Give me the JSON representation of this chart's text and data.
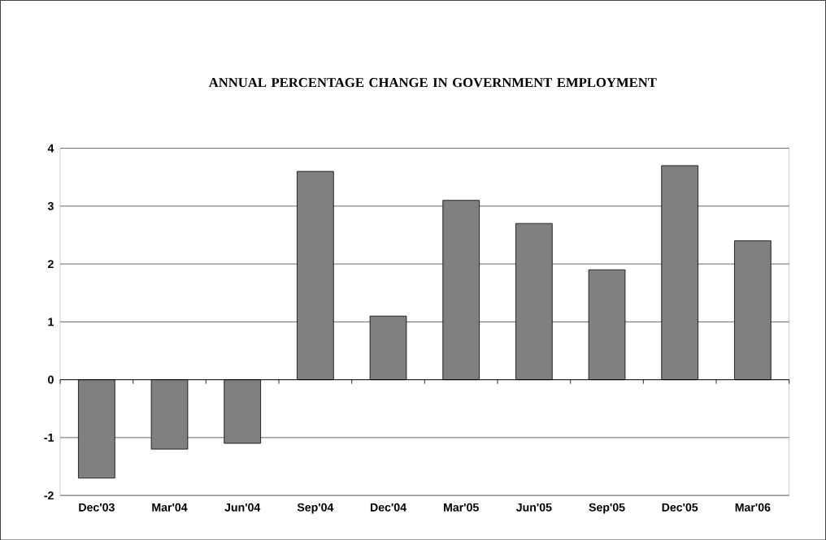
{
  "chart_data": {
    "type": "bar",
    "title": "ANNUAL PERCENTAGE CHANGE IN GOVERNMENT EMPLOYMENT",
    "categories": [
      "Dec'03",
      "Mar'04",
      "Jun'04",
      "Sep'04",
      "Dec'04",
      "Mar'05",
      "Jun'05",
      "Sep'05",
      "Dec'05",
      "Mar'06"
    ],
    "values": [
      -1.7,
      -1.2,
      -1.1,
      3.6,
      1.1,
      3.1,
      2.7,
      1.9,
      3.7,
      2.4
    ],
    "color": "#808080",
    "ylim": [
      -2,
      4
    ],
    "yticks": [
      -2,
      -1,
      0,
      1,
      2,
      3,
      4
    ],
    "grid": "y"
  }
}
